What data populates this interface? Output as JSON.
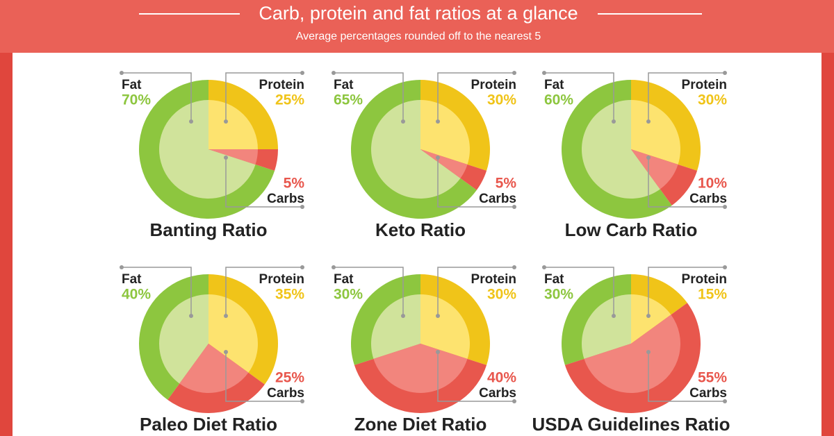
{
  "header": {
    "title": "Carb, protein and fat ratios at a glance",
    "subtitle": "Average percentages rounded off to the nearest 5"
  },
  "chart_data": [
    {
      "type": "pie",
      "title": "Banting Ratio",
      "categories": [
        "Fat",
        "Protein",
        "Carbs"
      ],
      "values": [
        70,
        25,
        5
      ],
      "value_labels": [
        "70%",
        "25%",
        "5%"
      ],
      "colors": [
        "#8dc63f",
        "#f0c419",
        "#e8574d"
      ],
      "inner_colors": [
        "#d0e39b",
        "#fde36f",
        "#f2857d"
      ]
    },
    {
      "type": "pie",
      "title": "Keto Ratio",
      "categories": [
        "Fat",
        "Protein",
        "Carbs"
      ],
      "values": [
        65,
        30,
        5
      ],
      "value_labels": [
        "65%",
        "30%",
        "5%"
      ],
      "colors": [
        "#8dc63f",
        "#f0c419",
        "#e8574d"
      ],
      "inner_colors": [
        "#d0e39b",
        "#fde36f",
        "#f2857d"
      ]
    },
    {
      "type": "pie",
      "title": "Low Carb Ratio",
      "categories": [
        "Fat",
        "Protein",
        "Carbs"
      ],
      "values": [
        60,
        30,
        10
      ],
      "value_labels": [
        "60%",
        "30%",
        "10%"
      ],
      "colors": [
        "#8dc63f",
        "#f0c419",
        "#e8574d"
      ],
      "inner_colors": [
        "#d0e39b",
        "#fde36f",
        "#f2857d"
      ]
    },
    {
      "type": "pie",
      "title": "Paleo Diet Ratio",
      "categories": [
        "Fat",
        "Protein",
        "Carbs"
      ],
      "values": [
        40,
        35,
        25
      ],
      "value_labels": [
        "40%",
        "35%",
        "25%"
      ],
      "colors": [
        "#8dc63f",
        "#f0c419",
        "#e8574d"
      ],
      "inner_colors": [
        "#d0e39b",
        "#fde36f",
        "#f2857d"
      ]
    },
    {
      "type": "pie",
      "title": "Zone Diet Ratio",
      "categories": [
        "Fat",
        "Protein",
        "Carbs"
      ],
      "values": [
        30,
        30,
        40
      ],
      "value_labels": [
        "30%",
        "30%",
        "40%"
      ],
      "colors": [
        "#8dc63f",
        "#f0c419",
        "#e8574d"
      ],
      "inner_colors": [
        "#d0e39b",
        "#fde36f",
        "#f2857d"
      ]
    },
    {
      "type": "pie",
      "title": "USDA Guidelines Ratio",
      "categories": [
        "Fat",
        "Protein",
        "Carbs"
      ],
      "values": [
        30,
        15,
        55
      ],
      "value_labels": [
        "30%",
        "15%",
        "55%"
      ],
      "colors": [
        "#8dc63f",
        "#f0c419",
        "#e8574d"
      ],
      "inner_colors": [
        "#d0e39b",
        "#fde36f",
        "#f2857d"
      ]
    }
  ]
}
